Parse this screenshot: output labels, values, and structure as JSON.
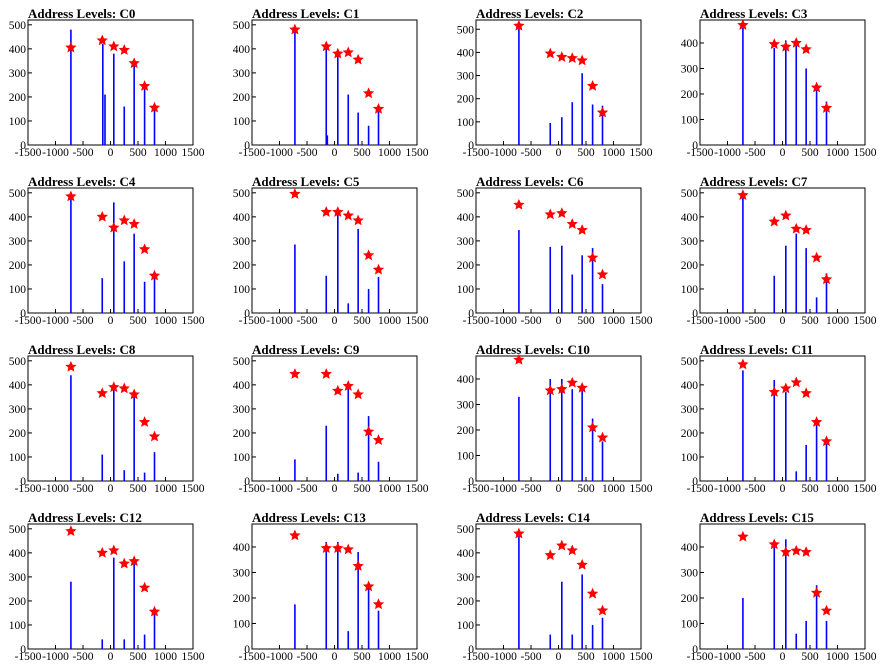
{
  "colors": {
    "spike": "#0000ff",
    "marker": "#ff0000",
    "axis": "#000000"
  },
  "chart_data": [
    {
      "type": "bar",
      "title": "Address Levels: C0",
      "xlim": [
        -1500,
        1500
      ],
      "ylim": [
        0,
        520
      ],
      "xticks": [
        -1500,
        -1000,
        -500,
        0,
        500,
        1000,
        1500
      ],
      "yticks": [
        0,
        100,
        200,
        300,
        400,
        500
      ],
      "peaks": [
        {
          "x": -720,
          "y": 405
        },
        {
          "x": -150,
          "y": 435
        },
        {
          "x": 60,
          "y": 410
        },
        {
          "x": 250,
          "y": 395
        },
        {
          "x": 430,
          "y": 340
        },
        {
          "x": 620,
          "y": 245
        },
        {
          "x": 800,
          "y": 155
        }
      ],
      "bars": [
        [
          -720,
          480
        ],
        [
          -140,
          420
        ],
        [
          -100,
          210
        ],
        [
          60,
          380
        ],
        [
          250,
          160
        ],
        [
          430,
          340
        ],
        [
          620,
          245
        ],
        [
          800,
          150
        ]
      ]
    },
    {
      "type": "bar",
      "title": "Address Levels: C1",
      "xlim": [
        -1500,
        1500
      ],
      "ylim": [
        0,
        520
      ],
      "xticks": [
        -1500,
        -1000,
        -500,
        0,
        500,
        1000,
        1500
      ],
      "yticks": [
        0,
        100,
        200,
        300,
        400,
        500
      ],
      "peaks": [
        {
          "x": -720,
          "y": 480
        },
        {
          "x": -150,
          "y": 410
        },
        {
          "x": 60,
          "y": 380
        },
        {
          "x": 250,
          "y": 385
        },
        {
          "x": 430,
          "y": 355
        },
        {
          "x": 620,
          "y": 215
        },
        {
          "x": 800,
          "y": 150
        }
      ],
      "bars": [
        [
          -720,
          480
        ],
        [
          -150,
          400
        ],
        [
          -130,
          40
        ],
        [
          60,
          380
        ],
        [
          250,
          210
        ],
        [
          430,
          135
        ],
        [
          620,
          80
        ],
        [
          800,
          140
        ]
      ]
    },
    {
      "type": "bar",
      "title": "Address Levels: C2",
      "xlim": [
        -1500,
        1500
      ],
      "ylim": [
        0,
        540
      ],
      "xticks": [
        -1500,
        -1000,
        -500,
        0,
        500,
        1000,
        1500
      ],
      "yticks": [
        0,
        100,
        200,
        300,
        400,
        500
      ],
      "peaks": [
        {
          "x": -720,
          "y": 515
        },
        {
          "x": -150,
          "y": 395
        },
        {
          "x": 60,
          "y": 380
        },
        {
          "x": 250,
          "y": 375
        },
        {
          "x": 430,
          "y": 365
        },
        {
          "x": 620,
          "y": 255
        },
        {
          "x": 800,
          "y": 140
        }
      ],
      "bars": [
        [
          -720,
          515
        ],
        [
          -150,
          95
        ],
        [
          60,
          120
        ],
        [
          250,
          185
        ],
        [
          430,
          310
        ],
        [
          620,
          175
        ],
        [
          800,
          170
        ]
      ]
    },
    {
      "type": "bar",
      "title": "Address Levels: C3",
      "xlim": [
        -1500,
        1500
      ],
      "ylim": [
        0,
        490
      ],
      "xticks": [
        -1500,
        -1000,
        -500,
        0,
        500,
        1000,
        1500
      ],
      "yticks": [
        0,
        100,
        200,
        300,
        400
      ],
      "peaks": [
        {
          "x": -720,
          "y": 470
        },
        {
          "x": -150,
          "y": 395
        },
        {
          "x": 60,
          "y": 385
        },
        {
          "x": 250,
          "y": 400
        },
        {
          "x": 430,
          "y": 375
        },
        {
          "x": 620,
          "y": 225
        },
        {
          "x": 800,
          "y": 145
        }
      ],
      "bars": [
        [
          -720,
          470
        ],
        [
          -150,
          380
        ],
        [
          60,
          410
        ],
        [
          250,
          400
        ],
        [
          430,
          300
        ],
        [
          620,
          220
        ],
        [
          800,
          170
        ]
      ]
    },
    {
      "type": "bar",
      "title": "Address Levels: C4",
      "xlim": [
        -1500,
        1500
      ],
      "ylim": [
        0,
        520
      ],
      "xticks": [
        -1500,
        -1000,
        -500,
        0,
        500,
        1000,
        1500
      ],
      "yticks": [
        0,
        100,
        200,
        300,
        400,
        500
      ],
      "peaks": [
        {
          "x": -720,
          "y": 485
        },
        {
          "x": -150,
          "y": 400
        },
        {
          "x": 60,
          "y": 355
        },
        {
          "x": 250,
          "y": 385
        },
        {
          "x": 430,
          "y": 370
        },
        {
          "x": 620,
          "y": 265
        },
        {
          "x": 800,
          "y": 155
        }
      ],
      "bars": [
        [
          -720,
          485
        ],
        [
          -150,
          145
        ],
        [
          60,
          460
        ],
        [
          250,
          215
        ],
        [
          430,
          330
        ],
        [
          620,
          130
        ],
        [
          800,
          150
        ]
      ]
    },
    {
      "type": "bar",
      "title": "Address Levels: C5",
      "xlim": [
        -1500,
        1500
      ],
      "ylim": [
        0,
        520
      ],
      "xticks": [
        -1500,
        -1000,
        -500,
        0,
        500,
        1000,
        1500
      ],
      "yticks": [
        0,
        100,
        200,
        300,
        400,
        500
      ],
      "peaks": [
        {
          "x": -720,
          "y": 495
        },
        {
          "x": -150,
          "y": 420
        },
        {
          "x": 60,
          "y": 420
        },
        {
          "x": 250,
          "y": 405
        },
        {
          "x": 430,
          "y": 385
        },
        {
          "x": 620,
          "y": 240
        },
        {
          "x": 800,
          "y": 180
        }
      ],
      "bars": [
        [
          -720,
          285
        ],
        [
          -150,
          155
        ],
        [
          60,
          420
        ],
        [
          250,
          40
        ],
        [
          430,
          350
        ],
        [
          620,
          100
        ],
        [
          800,
          150
        ]
      ]
    },
    {
      "type": "bar",
      "title": "Address Levels: C6",
      "xlim": [
        -1500,
        1500
      ],
      "ylim": [
        0,
        520
      ],
      "xticks": [
        -1500,
        -1000,
        -500,
        0,
        500,
        1000,
        1500
      ],
      "yticks": [
        0,
        100,
        200,
        300,
        400,
        500
      ],
      "peaks": [
        {
          "x": -720,
          "y": 450
        },
        {
          "x": -150,
          "y": 410
        },
        {
          "x": 60,
          "y": 415
        },
        {
          "x": 250,
          "y": 370
        },
        {
          "x": 430,
          "y": 345
        },
        {
          "x": 620,
          "y": 230
        },
        {
          "x": 800,
          "y": 160
        }
      ],
      "bars": [
        [
          -720,
          345
        ],
        [
          -150,
          275
        ],
        [
          60,
          280
        ],
        [
          250,
          160
        ],
        [
          430,
          240
        ],
        [
          620,
          270
        ],
        [
          800,
          120
        ]
      ]
    },
    {
      "type": "bar",
      "title": "Address Levels: C7",
      "xlim": [
        -1500,
        1500
      ],
      "ylim": [
        0,
        520
      ],
      "xticks": [
        -1500,
        -1000,
        -500,
        0,
        500,
        1000,
        1500
      ],
      "yticks": [
        0,
        100,
        200,
        300,
        400,
        500
      ],
      "peaks": [
        {
          "x": -720,
          "y": 490
        },
        {
          "x": -150,
          "y": 380
        },
        {
          "x": 60,
          "y": 405
        },
        {
          "x": 250,
          "y": 350
        },
        {
          "x": 430,
          "y": 345
        },
        {
          "x": 620,
          "y": 230
        },
        {
          "x": 800,
          "y": 140
        }
      ],
      "bars": [
        [
          -720,
          490
        ],
        [
          -150,
          155
        ],
        [
          60,
          280
        ],
        [
          250,
          330
        ],
        [
          430,
          270
        ],
        [
          620,
          65
        ],
        [
          800,
          165
        ]
      ]
    },
    {
      "type": "bar",
      "title": "Address Levels: C8",
      "xlim": [
        -1500,
        1500
      ],
      "ylim": [
        0,
        520
      ],
      "xticks": [
        -1500,
        -1000,
        -500,
        0,
        500,
        1000,
        1500
      ],
      "yticks": [
        0,
        100,
        200,
        300,
        400,
        500
      ],
      "peaks": [
        {
          "x": -720,
          "y": 475
        },
        {
          "x": -150,
          "y": 365
        },
        {
          "x": 60,
          "y": 390
        },
        {
          "x": 250,
          "y": 385
        },
        {
          "x": 430,
          "y": 360
        },
        {
          "x": 620,
          "y": 245
        },
        {
          "x": 800,
          "y": 185
        }
      ],
      "bars": [
        [
          -720,
          440
        ],
        [
          -150,
          110
        ],
        [
          60,
          390
        ],
        [
          250,
          45
        ],
        [
          430,
          350
        ],
        [
          620,
          35
        ],
        [
          800,
          120
        ]
      ]
    },
    {
      "type": "bar",
      "title": "Address Levels: C9",
      "xlim": [
        -1500,
        1500
      ],
      "ylim": [
        0,
        520
      ],
      "xticks": [
        -1500,
        -1000,
        -500,
        0,
        500,
        1000,
        1500
      ],
      "yticks": [
        0,
        100,
        200,
        300,
        400,
        500
      ],
      "peaks": [
        {
          "x": -720,
          "y": 445
        },
        {
          "x": -150,
          "y": 445
        },
        {
          "x": 60,
          "y": 375
        },
        {
          "x": 250,
          "y": 395
        },
        {
          "x": 430,
          "y": 360
        },
        {
          "x": 620,
          "y": 205
        },
        {
          "x": 800,
          "y": 170
        }
      ],
      "bars": [
        [
          -720,
          90
        ],
        [
          -150,
          230
        ],
        [
          60,
          30
        ],
        [
          250,
          385
        ],
        [
          430,
          35
        ],
        [
          620,
          270
        ],
        [
          800,
          80
        ]
      ]
    },
    {
      "type": "bar",
      "title": "Address Levels: C10",
      "xlim": [
        -1500,
        1500
      ],
      "ylim": [
        0,
        490
      ],
      "xticks": [
        -1500,
        -1000,
        -500,
        0,
        500,
        1000,
        1500
      ],
      "yticks": [
        0,
        100,
        200,
        300,
        400
      ],
      "peaks": [
        {
          "x": -720,
          "y": 475
        },
        {
          "x": -150,
          "y": 355
        },
        {
          "x": 60,
          "y": 360
        },
        {
          "x": 250,
          "y": 385
        },
        {
          "x": 430,
          "y": 365
        },
        {
          "x": 620,
          "y": 210
        },
        {
          "x": 800,
          "y": 170
        }
      ],
      "bars": [
        [
          -720,
          330
        ],
        [
          -150,
          400
        ],
        [
          60,
          400
        ],
        [
          250,
          360
        ],
        [
          430,
          380
        ],
        [
          620,
          245
        ],
        [
          800,
          155
        ]
      ]
    },
    {
      "type": "bar",
      "title": "Address Levels: C11",
      "xlim": [
        -1500,
        1500
      ],
      "ylim": [
        0,
        520
      ],
      "xticks": [
        -1500,
        -1000,
        -500,
        0,
        500,
        1000,
        1500
      ],
      "yticks": [
        0,
        100,
        200,
        300,
        400,
        500
      ],
      "peaks": [
        {
          "x": -720,
          "y": 485
        },
        {
          "x": -150,
          "y": 370
        },
        {
          "x": 60,
          "y": 385
        },
        {
          "x": 250,
          "y": 410
        },
        {
          "x": 430,
          "y": 365
        },
        {
          "x": 620,
          "y": 245
        },
        {
          "x": 800,
          "y": 165
        }
      ],
      "bars": [
        [
          -720,
          460
        ],
        [
          -150,
          420
        ],
        [
          60,
          370
        ],
        [
          250,
          40
        ],
        [
          430,
          150
        ],
        [
          620,
          250
        ],
        [
          800,
          160
        ]
      ]
    },
    {
      "type": "bar",
      "title": "Address Levels: C12",
      "xlim": [
        -1500,
        1500
      ],
      "ylim": [
        0,
        520
      ],
      "xticks": [
        -1500,
        -1000,
        -500,
        0,
        500,
        1000,
        1500
      ],
      "yticks": [
        0,
        100,
        200,
        300,
        400,
        500
      ],
      "peaks": [
        {
          "x": -720,
          "y": 490
        },
        {
          "x": -150,
          "y": 400
        },
        {
          "x": 60,
          "y": 410
        },
        {
          "x": 250,
          "y": 355
        },
        {
          "x": 430,
          "y": 365
        },
        {
          "x": 620,
          "y": 255
        },
        {
          "x": 800,
          "y": 155
        }
      ],
      "bars": [
        [
          -720,
          280
        ],
        [
          -150,
          40
        ],
        [
          60,
          380
        ],
        [
          250,
          40
        ],
        [
          430,
          365
        ],
        [
          620,
          60
        ],
        [
          800,
          170
        ]
      ]
    },
    {
      "type": "bar",
      "title": "Address Levels: C13",
      "xlim": [
        -1500,
        1500
      ],
      "ylim": [
        0,
        490
      ],
      "xticks": [
        -1500,
        -1000,
        -500,
        0,
        500,
        1000,
        1500
      ],
      "yticks": [
        0,
        100,
        200,
        300,
        400
      ],
      "peaks": [
        {
          "x": -720,
          "y": 445
        },
        {
          "x": -150,
          "y": 395
        },
        {
          "x": 60,
          "y": 395
        },
        {
          "x": 250,
          "y": 390
        },
        {
          "x": 430,
          "y": 325
        },
        {
          "x": 620,
          "y": 245
        },
        {
          "x": 800,
          "y": 175
        }
      ],
      "bars": [
        [
          -720,
          175
        ],
        [
          -150,
          420
        ],
        [
          60,
          420
        ],
        [
          250,
          70
        ],
        [
          430,
          380
        ],
        [
          620,
          240
        ],
        [
          800,
          150
        ]
      ]
    },
    {
      "type": "bar",
      "title": "Address Levels: C14",
      "xlim": [
        -1500,
        1500
      ],
      "ylim": [
        0,
        520
      ],
      "xticks": [
        -1500,
        -1000,
        -500,
        0,
        500,
        1000,
        1500
      ],
      "yticks": [
        0,
        100,
        200,
        300,
        400,
        500
      ],
      "peaks": [
        {
          "x": -720,
          "y": 480
        },
        {
          "x": -150,
          "y": 390
        },
        {
          "x": 60,
          "y": 430
        },
        {
          "x": 250,
          "y": 410
        },
        {
          "x": 430,
          "y": 350
        },
        {
          "x": 620,
          "y": 230
        },
        {
          "x": 800,
          "y": 160
        }
      ],
      "bars": [
        [
          -720,
          480
        ],
        [
          -150,
          60
        ],
        [
          60,
          280
        ],
        [
          250,
          60
        ],
        [
          430,
          310
        ],
        [
          620,
          100
        ],
        [
          800,
          130
        ]
      ]
    },
    {
      "type": "bar",
      "title": "Address Levels: C15",
      "xlim": [
        -1500,
        1500
      ],
      "ylim": [
        0,
        490
      ],
      "xticks": [
        -1500,
        -1000,
        -500,
        0,
        500,
        1000,
        1500
      ],
      "yticks": [
        0,
        100,
        200,
        300,
        400
      ],
      "peaks": [
        {
          "x": -720,
          "y": 440
        },
        {
          "x": -150,
          "y": 410
        },
        {
          "x": 60,
          "y": 380
        },
        {
          "x": 250,
          "y": 385
        },
        {
          "x": 430,
          "y": 380
        },
        {
          "x": 620,
          "y": 220
        },
        {
          "x": 800,
          "y": 150
        }
      ],
      "bars": [
        [
          -720,
          200
        ],
        [
          -150,
          420
        ],
        [
          60,
          430
        ],
        [
          250,
          60
        ],
        [
          430,
          110
        ],
        [
          620,
          250
        ],
        [
          800,
          110
        ]
      ]
    }
  ]
}
